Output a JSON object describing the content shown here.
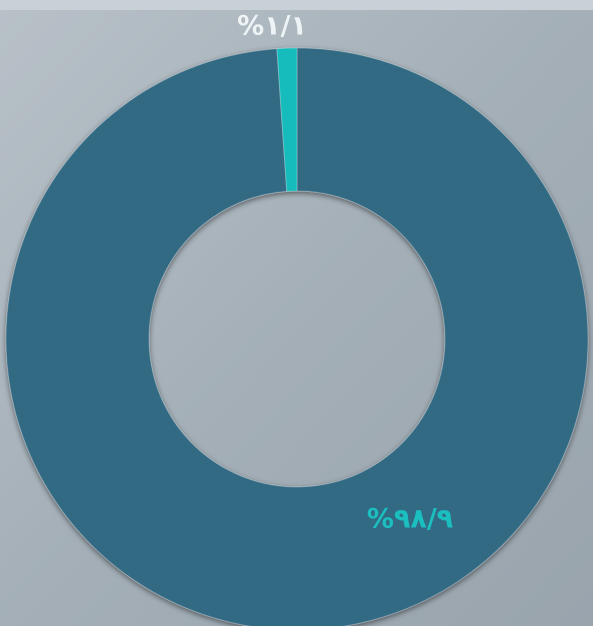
{
  "chart_data": {
    "type": "donut",
    "values": [
      98.9,
      1.1
    ],
    "value_labels": [
      "%۹۸/۹",
      "%۱/۱"
    ],
    "colors": [
      "#336a84",
      "#17bcbc"
    ]
  }
}
